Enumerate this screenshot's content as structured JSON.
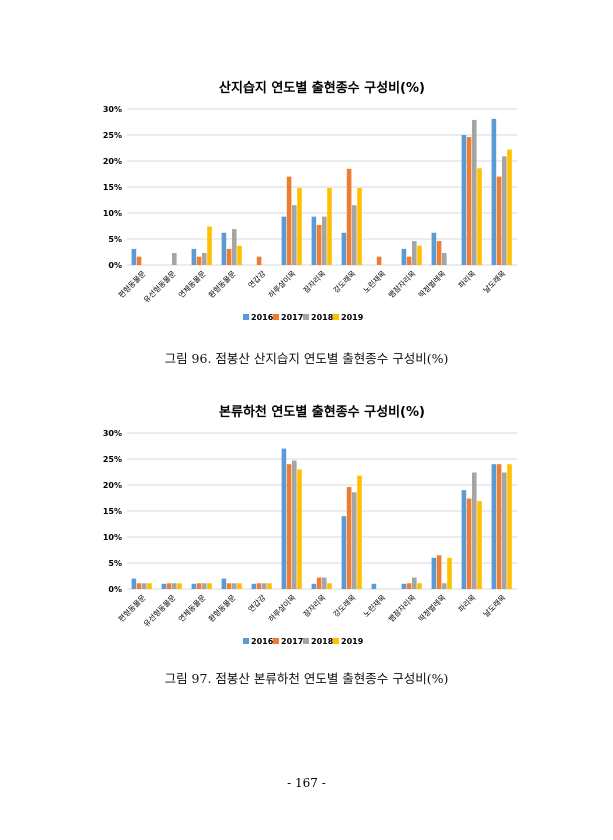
{
  "colors": {
    "2016": "#5b9bd5",
    "2017": "#ed7d31",
    "2018": "#a5a5a5",
    "2019": "#ffc000",
    "grid": "#d9d9d9"
  },
  "captions": {
    "fig96": "그림 96. 점봉산 산지습지 연도별 출현종수 구성비(%)",
    "fig97": "그림 97. 점봉산 본류하천 연도별 출현종수 구성비(%)"
  },
  "page_number": "- 167 -",
  "chart_data": [
    {
      "type": "bar",
      "title": "산지습지 연도별 출현종수 구성비(%)",
      "xlabel": "",
      "ylabel": "",
      "ylim": [
        0,
        30
      ],
      "yticks": [
        "0%",
        "5%",
        "10%",
        "15%",
        "20%",
        "25%",
        "30%"
      ],
      "grid": true,
      "legend_position": "bottom",
      "categories": [
        "편형동물문",
        "유선형동물문",
        "연체동물문",
        "환형동물문",
        "연갑강",
        "하루살이목",
        "잠자리목",
        "강도래목",
        "노린재목",
        "뱀잠자리목",
        "딱정벌레목",
        "파리목",
        "날도래목"
      ],
      "series": [
        {
          "name": "2016",
          "values": [
            3.1,
            0,
            3.1,
            6.2,
            0,
            9.3,
            9.3,
            6.2,
            0,
            3.1,
            6.2,
            25.0,
            28.1
          ]
        },
        {
          "name": "2017",
          "values": [
            1.6,
            0,
            1.6,
            3.1,
            1.6,
            17.0,
            7.7,
            18.5,
            1.6,
            1.6,
            4.6,
            24.6,
            17.0
          ]
        },
        {
          "name": "2018",
          "values": [
            0,
            2.3,
            2.3,
            6.9,
            0,
            11.5,
            9.3,
            11.5,
            0,
            4.6,
            2.3,
            27.9,
            20.9
          ]
        },
        {
          "name": "2019",
          "values": [
            0,
            0,
            7.4,
            3.7,
            0,
            14.8,
            14.8,
            14.8,
            0,
            3.7,
            0,
            18.6,
            22.2
          ]
        }
      ]
    },
    {
      "type": "bar",
      "title": "본류하천 연도별 출현종수 구성비(%)",
      "xlabel": "",
      "ylabel": "",
      "ylim": [
        0,
        30
      ],
      "yticks": [
        "0%",
        "5%",
        "10%",
        "15%",
        "20%",
        "25%",
        "30%"
      ],
      "grid": true,
      "legend_position": "bottom",
      "categories": [
        "편형동물문",
        "유선형동물문",
        "연체동물문",
        "환형동물문",
        "연갑강",
        "하루살이목",
        "잠자리목",
        "강도래목",
        "노린재목",
        "뱀잠자리목",
        "딱정벌레목",
        "파리목",
        "날도래목"
      ],
      "series": [
        {
          "name": "2016",
          "values": [
            2.0,
            1.0,
            1.0,
            2.0,
            1.0,
            27.0,
            1.0,
            14.0,
            1.0,
            1.0,
            6.0,
            19.0,
            24.0
          ]
        },
        {
          "name": "2017",
          "values": [
            1.1,
            1.1,
            1.1,
            1.1,
            1.1,
            24.0,
            2.2,
            19.6,
            0,
            1.1,
            6.5,
            17.4,
            24.0
          ]
        },
        {
          "name": "2018",
          "values": [
            1.1,
            1.1,
            1.1,
            1.1,
            1.1,
            24.7,
            2.2,
            18.6,
            0,
            2.2,
            1.1,
            22.4,
            22.4
          ]
        },
        {
          "name": "2019",
          "values": [
            1.1,
            1.1,
            1.1,
            1.1,
            1.1,
            23.0,
            1.1,
            21.8,
            0,
            1.1,
            6.0,
            16.9,
            24.0
          ]
        }
      ]
    }
  ]
}
